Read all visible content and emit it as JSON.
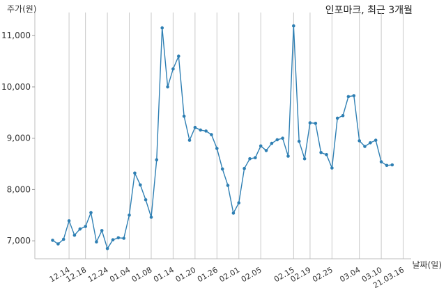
{
  "chart_data": {
    "type": "line",
    "title": "인포마크, 최근 3개월",
    "ylabel": "주가(원)",
    "xlabel": "날짜(일)",
    "ylim": [
      6650,
      11450
    ],
    "yticks": [
      7000,
      8000,
      9000,
      10000,
      11000
    ],
    "ytick_labels": [
      "7,000",
      "8,000",
      "9,000",
      "10,000",
      "11,000"
    ],
    "grid": "vertical",
    "color": "#2e7fb3",
    "xtick_labels": [
      "12.14",
      "12.18",
      "12.24",
      "01.04",
      "01.08",
      "01.14",
      "01.20",
      "01.26",
      "02.01",
      "02.05",
      "02.15",
      "02.19",
      "02.25",
      "03.04",
      "03.10",
      "21.03.16"
    ],
    "xtick_index": [
      3,
      6,
      10,
      14,
      18,
      22,
      26,
      30,
      34,
      38,
      44,
      47,
      51,
      56,
      60,
      64
    ],
    "values": [
      7010,
      6940,
      7030,
      7390,
      7110,
      7230,
      7280,
      7550,
      6980,
      7200,
      6850,
      7020,
      7060,
      7050,
      7500,
      8320,
      8090,
      7800,
      7460,
      8580,
      11150,
      10000,
      10350,
      10600,
      9430,
      8960,
      9210,
      9160,
      9140,
      9070,
      8800,
      8400,
      8080,
      7540,
      7740,
      8410,
      8600,
      8620,
      8850,
      8760,
      8900,
      8970,
      9000,
      8650,
      11190,
      8940,
      8600,
      9300,
      9290,
      8720,
      8680,
      8420,
      9390,
      9440,
      9810,
      9830,
      8950,
      8840,
      8910,
      8960,
      8540,
      8470,
      8480
    ]
  }
}
